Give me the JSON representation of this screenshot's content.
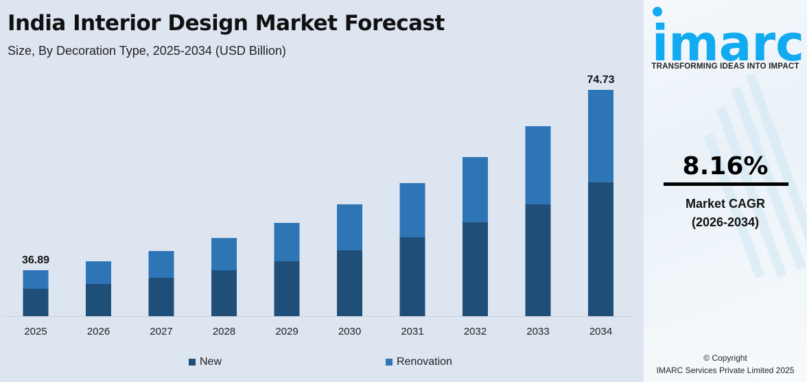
{
  "header": {
    "title": "India Interior Design Market Forecast",
    "subtitle": "Size, By Decoration Type, 2025-2034 (USD Billion)"
  },
  "chart_data": {
    "type": "bar",
    "stacked": true,
    "categories": [
      "2025",
      "2026",
      "2027",
      "2028",
      "2029",
      "2030",
      "2031",
      "2032",
      "2033",
      "2034"
    ],
    "series": [
      {
        "name": "New",
        "color": "#1f4e79",
        "values": [
          22.02,
          22.77,
          24.12,
          25.65,
          27.54,
          29.87,
          32.7,
          35.8,
          39.49,
          44.16
        ]
      },
      {
        "name": "Renovation",
        "color": "#2e75b6",
        "values": [
          14.87,
          15.99,
          16.8,
          18.0,
          19.28,
          20.84,
          22.47,
          24.83,
          27.62,
          30.57
        ]
      }
    ],
    "data_labels": {
      "2025": "36.89",
      "2034": "74.73"
    },
    "xlabel": "",
    "ylabel": "",
    "y_axis_visible": false,
    "grid": false,
    "legend_position": "bottom"
  },
  "sidebar": {
    "logo_text": "imarc",
    "logo_color": "#12aaf0",
    "tagline": "TRANSFORMING IDEAS INTO IMPACT",
    "cagr_value": "8.16%",
    "cagr_label": "Market CAGR",
    "cagr_period": "(2026-2034)",
    "copyright_line1": "© Copyright",
    "copyright_line2": "IMARC Services Private Limited 2025"
  }
}
